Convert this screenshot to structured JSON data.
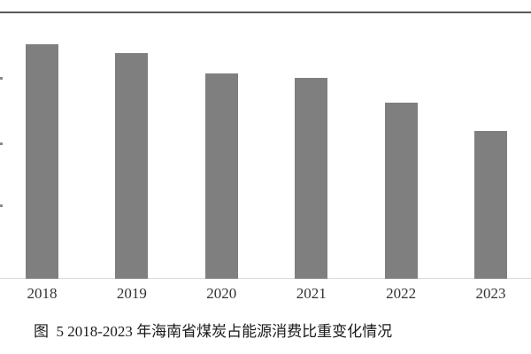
{
  "figure": {
    "caption": "图  5 2018-2023 年海南省煤炭占能源消费比重变化情况"
  },
  "chart_data": {
    "type": "bar",
    "title": "",
    "categories": [
      "2018",
      "2019",
      "2020",
      "2021",
      "2022",
      "2023"
    ],
    "values": [
      35.3,
      34.0,
      30.9,
      30.3,
      26.5,
      22.3
    ],
    "values_note": "estimated from bar heights against gridline spacing; y-axis tick labels are cropped off the left edge of the screenshot",
    "xlabel": "",
    "ylabel": "",
    "ylim": [
      0,
      40
    ],
    "y_tick_interval": 10,
    "grid": false,
    "legend": "none",
    "bar_color": "#7f7f7f"
  },
  "colors": {
    "bar": "#7f7f7f",
    "top_border": "#595959",
    "axis_line": "#d9d9d9",
    "tick_text": "#333333",
    "caption_text": "#1a1a1a",
    "background": "#ffffff"
  }
}
